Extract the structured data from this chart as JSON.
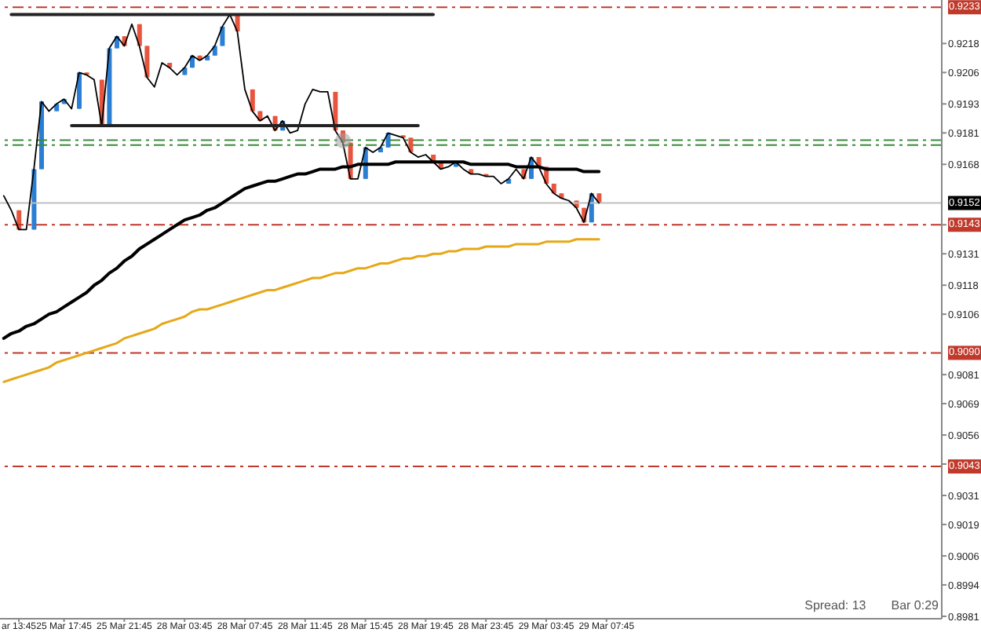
{
  "chart_data": {
    "type": "candlestick",
    "categories": [
      null,
      null,
      "ar 13:45",
      null,
      null,
      null,
      null,
      null,
      "25 Mar 17:45",
      null,
      null,
      null,
      null,
      null,
      null,
      null,
      "25 Mar 21:45",
      null,
      null,
      null,
      null,
      null,
      null,
      null,
      "28 Mar 03:45",
      null,
      null,
      null,
      null,
      null,
      null,
      null,
      "28 Mar 07:45",
      null,
      null,
      null,
      null,
      null,
      null,
      null,
      "28 Mar 11:45",
      null,
      null,
      null,
      null,
      null,
      null,
      null,
      "28 Mar 15:45",
      null,
      null,
      null,
      null,
      null,
      null,
      null,
      "28 Mar 19:45",
      null,
      null,
      null,
      null,
      null,
      null,
      null,
      "28 Mar 23:45",
      null,
      null,
      null,
      null,
      null,
      null,
      null,
      "29 Mar 03:45",
      null,
      null,
      null,
      null,
      null,
      null,
      null,
      "29 Mar 07:45"
    ],
    "ohlc": [
      null,
      null,
      [
        0.9149,
        0.9149,
        0.9141,
        0.9141
      ],
      null,
      [
        0.9141,
        0.9166,
        0.9141,
        0.9166
      ],
      [
        0.9166,
        0.9194,
        0.9166,
        0.9194
      ],
      null,
      [
        0.919,
        0.9193,
        0.919,
        0.9193
      ],
      [
        0.9193,
        0.9195,
        0.9193,
        0.9195
      ],
      null,
      [
        0.9191,
        0.9206,
        0.9191,
        0.9206
      ],
      [
        0.9206,
        0.9206,
        0.9205,
        0.9205
      ],
      null,
      [
        0.9203,
        0.9203,
        0.9184,
        0.9184
      ],
      [
        0.9184,
        0.9216,
        0.9184,
        0.9216
      ],
      [
        0.9216,
        0.9221,
        0.9216,
        0.9221
      ],
      [
        0.9221,
        0.9221,
        0.9217,
        0.9217
      ],
      null,
      [
        0.9226,
        0.9226,
        0.9217,
        0.9217
      ],
      [
        0.9217,
        0.9217,
        0.9204,
        0.9204
      ],
      null,
      null,
      [
        0.921,
        0.921,
        0.9208,
        0.9208
      ],
      null,
      [
        0.9205,
        0.9208,
        0.9205,
        0.9208
      ],
      [
        0.9208,
        0.9213,
        0.9208,
        0.9213
      ],
      [
        0.9213,
        0.9213,
        0.9211,
        0.9211
      ],
      [
        0.9211,
        0.9213,
        0.9211,
        0.9213
      ],
      [
        0.9213,
        0.9217,
        0.9213,
        0.9217
      ],
      [
        0.9217,
        0.9225,
        0.9217,
        0.9225
      ],
      null,
      [
        0.923,
        0.923,
        0.9223,
        0.9223
      ],
      null,
      [
        0.9199,
        0.9199,
        0.919,
        0.919
      ],
      [
        0.919,
        0.919,
        0.9186,
        0.9186
      ],
      null,
      [
        0.9188,
        0.9188,
        0.9182,
        0.9182
      ],
      [
        0.9182,
        0.9186,
        0.9182,
        0.9186
      ],
      null,
      null,
      null,
      null,
      null,
      null,
      [
        0.9198,
        0.9198,
        0.9182,
        0.9182
      ],
      [
        0.9182,
        0.9182,
        0.9177,
        0.9177
      ],
      [
        0.9177,
        0.9177,
        0.9162,
        0.9162
      ],
      null,
      [
        0.9162,
        0.9175,
        0.9162,
        0.9175
      ],
      null,
      [
        0.9173,
        0.9175,
        0.9173,
        0.9175
      ],
      [
        0.9175,
        0.9181,
        0.9175,
        0.9181
      ],
      null,
      [
        0.918,
        0.918,
        0.9179,
        0.9179
      ],
      [
        0.9179,
        0.9179,
        0.9173,
        0.9173
      ],
      null,
      null,
      [
        0.9172,
        0.9172,
        0.9169,
        0.9169
      ],
      [
        0.9169,
        0.9169,
        0.9166,
        0.9166
      ],
      null,
      [
        0.9167,
        0.9169,
        0.9167,
        0.9169
      ],
      null,
      [
        0.9166,
        0.9166,
        0.9164,
        0.9164
      ],
      null,
      [
        0.9164,
        0.9164,
        0.9163,
        0.9163
      ],
      null,
      null,
      [
        0.916,
        0.9162,
        0.916,
        0.9162
      ],
      null,
      [
        0.9166,
        0.9166,
        0.9162,
        0.9162
      ],
      [
        0.9162,
        0.9171,
        0.9162,
        0.9171
      ],
      [
        0.9171,
        0.9171,
        0.9167,
        0.9167
      ],
      [
        0.9167,
        0.9167,
        0.916,
        0.916
      ],
      [
        0.916,
        0.916,
        0.9156,
        0.9156
      ],
      [
        0.9156,
        0.9156,
        0.9154,
        0.9154
      ],
      null,
      [
        0.9153,
        0.9153,
        0.915,
        0.915
      ],
      [
        0.915,
        0.915,
        0.9144,
        0.9144
      ],
      [
        0.9144,
        0.9156,
        0.9144,
        0.9156
      ],
      [
        0.9156,
        0.9156,
        0.9152,
        0.9152
      ],
      null
    ],
    "colors": [
      null,
      null,
      "#e8553f",
      null,
      "#2a7fd4",
      "#2a7fd4",
      null,
      "#2a7fd4",
      "#2a7fd4",
      null,
      "#2a7fd4",
      "#e8553f",
      null,
      "#e8553f",
      "#2a7fd4",
      "#2a7fd4",
      "#e8553f",
      null,
      "#e8553f",
      "#e8553f",
      null,
      null,
      "#e8553f",
      null,
      "#2a7fd4",
      "#2a7fd4",
      "#e8553f",
      "#2a7fd4",
      "#2a7fd4",
      "#2a7fd4",
      null,
      "#e8553f",
      null,
      "#e8553f",
      "#e8553f",
      null,
      "#e8553f",
      "#2a7fd4",
      null,
      null,
      null,
      null,
      null,
      null,
      "#e8553f",
      "#e8553f",
      "#e8553f",
      null,
      "#2a7fd4",
      null,
      "#2a7fd4",
      "#2a7fd4",
      null,
      "#e8553f",
      "#e8553f",
      null,
      null,
      "#e8553f",
      "#e8553f",
      null,
      "#2a7fd4",
      null,
      "#e8553f",
      null,
      "#e8553f",
      null,
      null,
      "#2a7fd4",
      null,
      "#e8553f",
      "#2a7fd4",
      "#e8553f",
      "#e8553f",
      "#e8553f",
      "#e8553f",
      null,
      "#e8553f",
      "#e8553f",
      "#2a7fd4",
      "#e8553f",
      null
    ],
    "series": [
      {
        "type": "line",
        "color": "#000000",
        "values": [
          0.9155,
          0.9149,
          0.9141,
          0.9141,
          0.9166,
          0.9194,
          0.919,
          0.9193,
          0.9195,
          0.9191,
          0.9206,
          0.9205,
          0.9203,
          0.9184,
          0.9216,
          0.9221,
          0.9217,
          0.9226,
          0.9217,
          0.9204,
          0.92,
          0.921,
          0.9208,
          0.9205,
          0.9208,
          0.9213,
          0.9211,
          0.9213,
          0.9217,
          0.9225,
          0.923,
          0.9223,
          0.9199,
          0.919,
          0.9186,
          0.9188,
          0.9182,
          0.9186,
          0.9181,
          0.9182,
          0.9193,
          0.9199,
          0.9198,
          0.9198,
          0.9182,
          0.9177,
          0.9162,
          0.9162,
          0.9175,
          0.9173,
          0.9175,
          0.9181,
          0.918,
          0.9179,
          0.9173,
          0.9171,
          0.9172,
          0.9169,
          0.9166,
          0.9167,
          0.9169,
          0.9166,
          0.9164,
          0.9164,
          0.9163,
          0.9163,
          0.916,
          0.9162,
          0.9166,
          0.9162,
          0.9171,
          0.9167,
          0.916,
          0.9156,
          0.9154,
          0.9153,
          0.915,
          0.9144,
          0.9156,
          0.9152,
          null
        ]
      },
      {
        "type": "line",
        "color": "#000000",
        "values": [
          0.9096,
          0.9098,
          0.9099,
          0.9101,
          0.9102,
          0.9104,
          0.9106,
          0.9107,
          0.9109,
          0.9111,
          0.9113,
          0.9115,
          0.9118,
          0.912,
          0.9123,
          0.9125,
          0.9128,
          0.913,
          0.9133,
          0.9135,
          0.9137,
          0.9139,
          0.9141,
          0.9143,
          0.9145,
          0.9146,
          0.9147,
          0.9149,
          0.915,
          0.9152,
          0.9154,
          0.9156,
          0.9158,
          0.9159,
          0.916,
          0.9161,
          0.9161,
          0.9162,
          0.9163,
          0.9164,
          0.9164,
          0.9165,
          0.9166,
          0.9166,
          0.9166,
          0.9167,
          0.9167,
          0.9168,
          0.9168,
          0.9168,
          0.9168,
          0.9168,
          0.9169,
          0.9169,
          0.9169,
          0.9169,
          0.9169,
          0.9169,
          0.9169,
          0.9169,
          0.9169,
          0.9169,
          0.9168,
          0.9168,
          0.9168,
          0.9168,
          0.9168,
          0.9168,
          0.9167,
          0.9167,
          0.9167,
          0.9167,
          0.9166,
          0.9166,
          0.9166,
          0.9166,
          0.9166,
          0.9165,
          0.9165,
          0.9165,
          null
        ]
      },
      {
        "type": "line",
        "color": "#e6a817",
        "values": [
          0.9078,
          0.9079,
          0.908,
          0.9081,
          0.9082,
          0.9083,
          0.9084,
          0.9086,
          0.9087,
          0.9088,
          0.9089,
          0.909,
          0.9091,
          0.9092,
          0.9093,
          0.9094,
          0.9096,
          0.9097,
          0.9098,
          0.9099,
          0.91,
          0.9102,
          0.9103,
          0.9104,
          0.9105,
          0.9107,
          0.9108,
          0.9108,
          0.9109,
          0.911,
          0.9111,
          0.9112,
          0.9113,
          0.9114,
          0.9115,
          0.9116,
          0.9116,
          0.9117,
          0.9118,
          0.9119,
          0.912,
          0.9121,
          0.9121,
          0.9122,
          0.9123,
          0.9123,
          0.9124,
          0.9125,
          0.9125,
          0.9126,
          0.9127,
          0.9127,
          0.9128,
          0.9129,
          0.9129,
          0.913,
          0.913,
          0.9131,
          0.9131,
          0.9132,
          0.9132,
          0.9133,
          0.9133,
          0.9133,
          0.9134,
          0.9134,
          0.9134,
          0.9134,
          0.9135,
          0.9135,
          0.9135,
          0.9135,
          0.9136,
          0.9136,
          0.9136,
          0.9136,
          0.9137,
          0.9137,
          0.9137,
          0.9137,
          null
        ]
      },
      {
        "type": "line",
        "color": "#222222",
        "values": [
          null,
          0.923,
          0.923,
          0.923,
          0.923,
          0.923,
          0.923,
          0.923,
          0.923,
          0.923,
          0.923,
          0.923,
          0.923,
          0.923,
          0.923,
          0.923,
          0.923,
          0.923,
          0.923,
          0.923,
          0.923,
          0.923,
          0.923,
          0.923,
          0.923,
          0.923,
          0.923,
          0.923,
          0.923,
          0.923,
          0.923,
          0.923,
          0.923,
          0.923,
          0.923,
          0.923,
          0.923,
          0.923,
          0.923,
          0.923,
          0.923,
          0.923,
          0.923,
          0.923,
          0.923,
          0.923,
          0.923,
          0.923,
          0.923,
          0.923,
          0.923,
          0.923,
          0.923,
          0.923,
          0.923,
          0.923,
          0.923,
          0.923,
          null,
          null,
          null,
          null,
          null,
          null,
          null,
          null,
          null,
          null,
          null,
          null,
          null,
          null,
          null,
          null,
          null,
          null,
          null,
          null,
          null,
          null,
          null
        ]
      },
      {
        "type": "line",
        "color": "#222222",
        "values": [
          null,
          null,
          null,
          null,
          null,
          null,
          null,
          null,
          null,
          0.9184,
          0.9184,
          0.9184,
          0.9184,
          0.9184,
          0.9184,
          0.9184,
          0.9184,
          0.9184,
          0.9184,
          0.9184,
          0.9184,
          0.9184,
          0.9184,
          0.9184,
          0.9184,
          0.9184,
          0.9184,
          0.9184,
          0.9184,
          0.9184,
          0.9184,
          0.9184,
          0.9184,
          0.9184,
          0.9184,
          0.9184,
          0.9184,
          0.9184,
          0.9184,
          0.9184,
          0.9184,
          0.9184,
          0.9184,
          0.9184,
          0.9184,
          0.9184,
          0.9184,
          0.9184,
          0.9184,
          0.9184,
          0.9184,
          0.9184,
          0.9184,
          0.9184,
          0.9184,
          0.9184,
          null,
          null,
          null,
          null,
          null,
          null,
          null,
          null,
          null,
          null,
          null,
          null,
          null,
          null,
          null,
          null,
          null,
          null,
          null,
          null,
          null,
          null,
          null,
          null,
          null
        ]
      }
    ],
    "marker": "none",
    "ylim": [
      0.898,
      0.9236
    ],
    "yticks": [
      0.9218,
      0.9206,
      0.9193,
      0.9181,
      0.9168,
      {
        "value": 0.9143,
        "label": null
      },
      0.9131,
      0.9118,
      0.9106,
      0.9081,
      0.9069,
      0.9056,
      {
        "value": 0.9044,
        "label": null
      },
      0.9031,
      0.9019,
      0.9006,
      0.8994,
      0.8981
    ],
    "ref_lines": [
      {
        "axis": "y",
        "value": 0.9233,
        "label": "0.9233",
        "color": "#c0392b",
        "line_style": "dashed"
      },
      {
        "axis": "y",
        "value": 0.9178,
        "color": "#3a8a3a",
        "line_style": "dashed"
      },
      {
        "axis": "y",
        "value": 0.9176,
        "color": "#3a8a3a",
        "line_style": "dashed"
      },
      {
        "axis": "y",
        "value": 0.9152,
        "label": "0.9152",
        "color": "#c0c0c0",
        "line_style": "solid"
      },
      {
        "axis": "y",
        "value": 0.9143,
        "label": "0.9143",
        "color": "#c0392b",
        "line_style": "dashed"
      },
      {
        "axis": "y",
        "value": 0.909,
        "label": "0.9090",
        "color": "#c0392b",
        "line_style": "dashed"
      },
      {
        "axis": "y",
        "value": 0.9043,
        "label": "0.9043",
        "color": "#c0392b",
        "line_style": "dashed"
      }
    ],
    "annotations": [
      "Spread: 13",
      "Bar 0:29"
    ]
  }
}
